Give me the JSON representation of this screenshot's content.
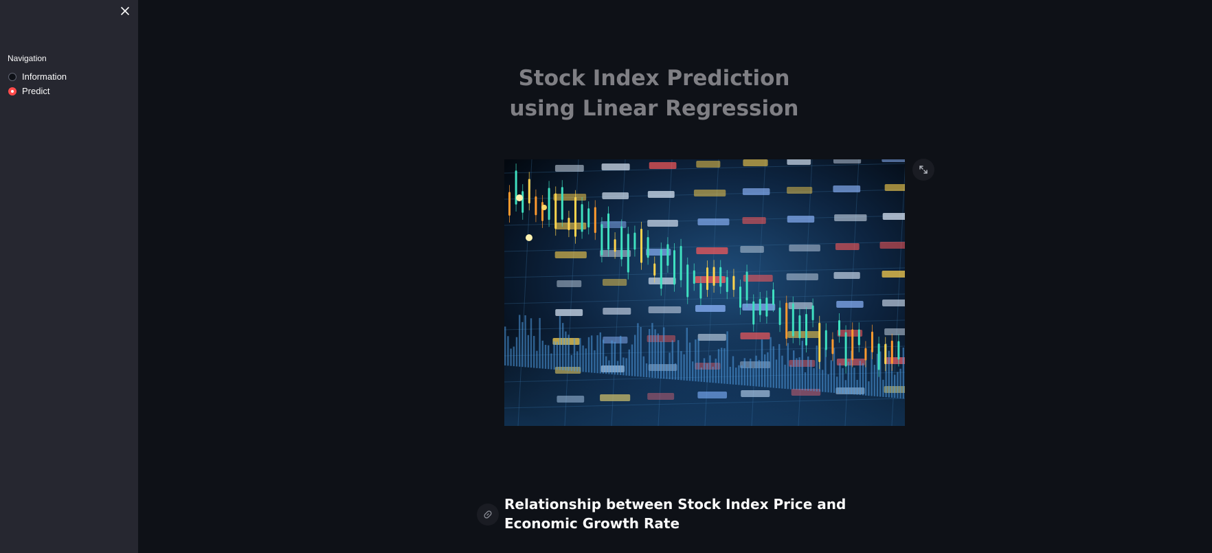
{
  "sidebar": {
    "close_icon": "close-icon",
    "nav_title": "Navigation",
    "options": [
      {
        "label": "Information",
        "selected": false
      },
      {
        "label": "Predict",
        "selected": true
      }
    ]
  },
  "main": {
    "title": "Stock Index Prediction using Linear Regression",
    "fullscreen_icon": "expand-icon",
    "anchor_icon": "link-icon",
    "subheader": "Relationship between Stock Index Price and Economic Growth Rate"
  },
  "colors": {
    "background": "#0e1117",
    "sidebar": "#262730",
    "accent": "#ff4b4b",
    "title": "#7f7f84"
  }
}
